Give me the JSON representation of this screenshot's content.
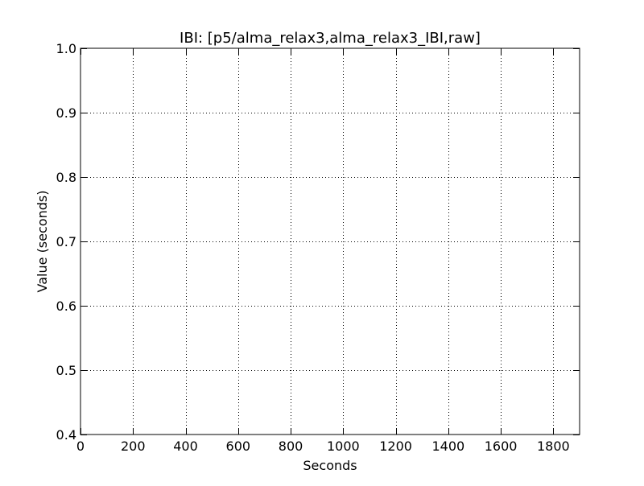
{
  "chart_data": {
    "type": "line",
    "title": "IBI: [p5/alma_relax3,alma_relax3_IBI,raw]",
    "xlabel": "Seconds",
    "ylabel": "Value (seconds)",
    "xlim": [
      0,
      1900
    ],
    "ylim": [
      0.4,
      1.0
    ],
    "xticks": [
      0,
      200,
      400,
      600,
      800,
      1000,
      1200,
      1400,
      1600,
      1800
    ],
    "xtick_labels": [
      "0",
      "200",
      "400",
      "600",
      "800",
      "1000",
      "1200",
      "1400",
      "1600",
      "1800"
    ],
    "yticks": [
      0.4,
      0.5,
      0.6,
      0.7,
      0.8,
      0.9,
      1.0
    ],
    "ytick_labels": [
      "0.4",
      "0.5",
      "0.6",
      "0.7",
      "0.8",
      "0.9",
      "1.0"
    ],
    "grid": true,
    "series": [
      {
        "values": []
      }
    ],
    "colors": {
      "axis": "#000000",
      "grid": "#000000",
      "background": "#ffffff"
    }
  }
}
